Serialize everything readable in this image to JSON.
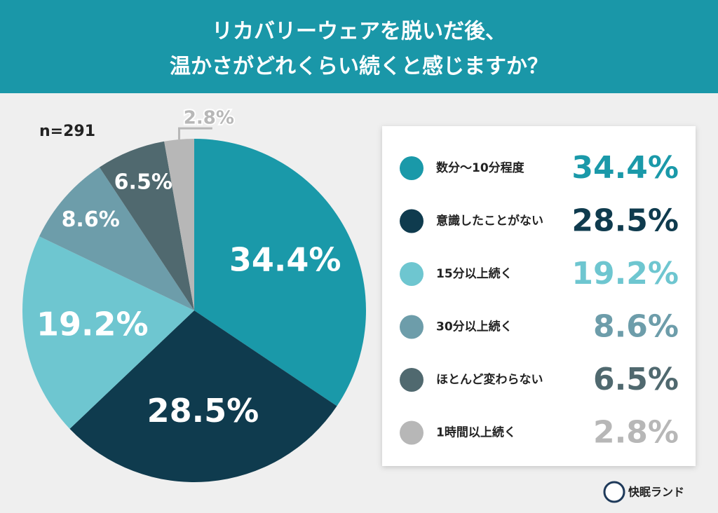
{
  "chart_data": {
    "type": "pie",
    "title": [
      "リカバリーウェアを脱いだ後、",
      "温かさがどれくらい続くと感じますか？"
    ],
    "sample": "n=291",
    "categories": [
      "数分〜10分程度",
      "意識したことがない",
      "15分以上続く",
      "30分以上続く",
      "ほとんど変わらない",
      "1時間以上続く"
    ],
    "values": [
      34.4,
      28.5,
      19.2,
      8.6,
      6.5,
      2.8
    ],
    "value_labels": [
      "34.4%",
      "28.5%",
      "19.2%",
      "8.6%",
      "6.5%",
      "2.8%"
    ],
    "colors": [
      "#1a99a9",
      "#0f3b4e",
      "#6ec6d0",
      "#6d9daa",
      "#50696f",
      "#b7b7b7"
    ],
    "source": "快眠ランド"
  }
}
